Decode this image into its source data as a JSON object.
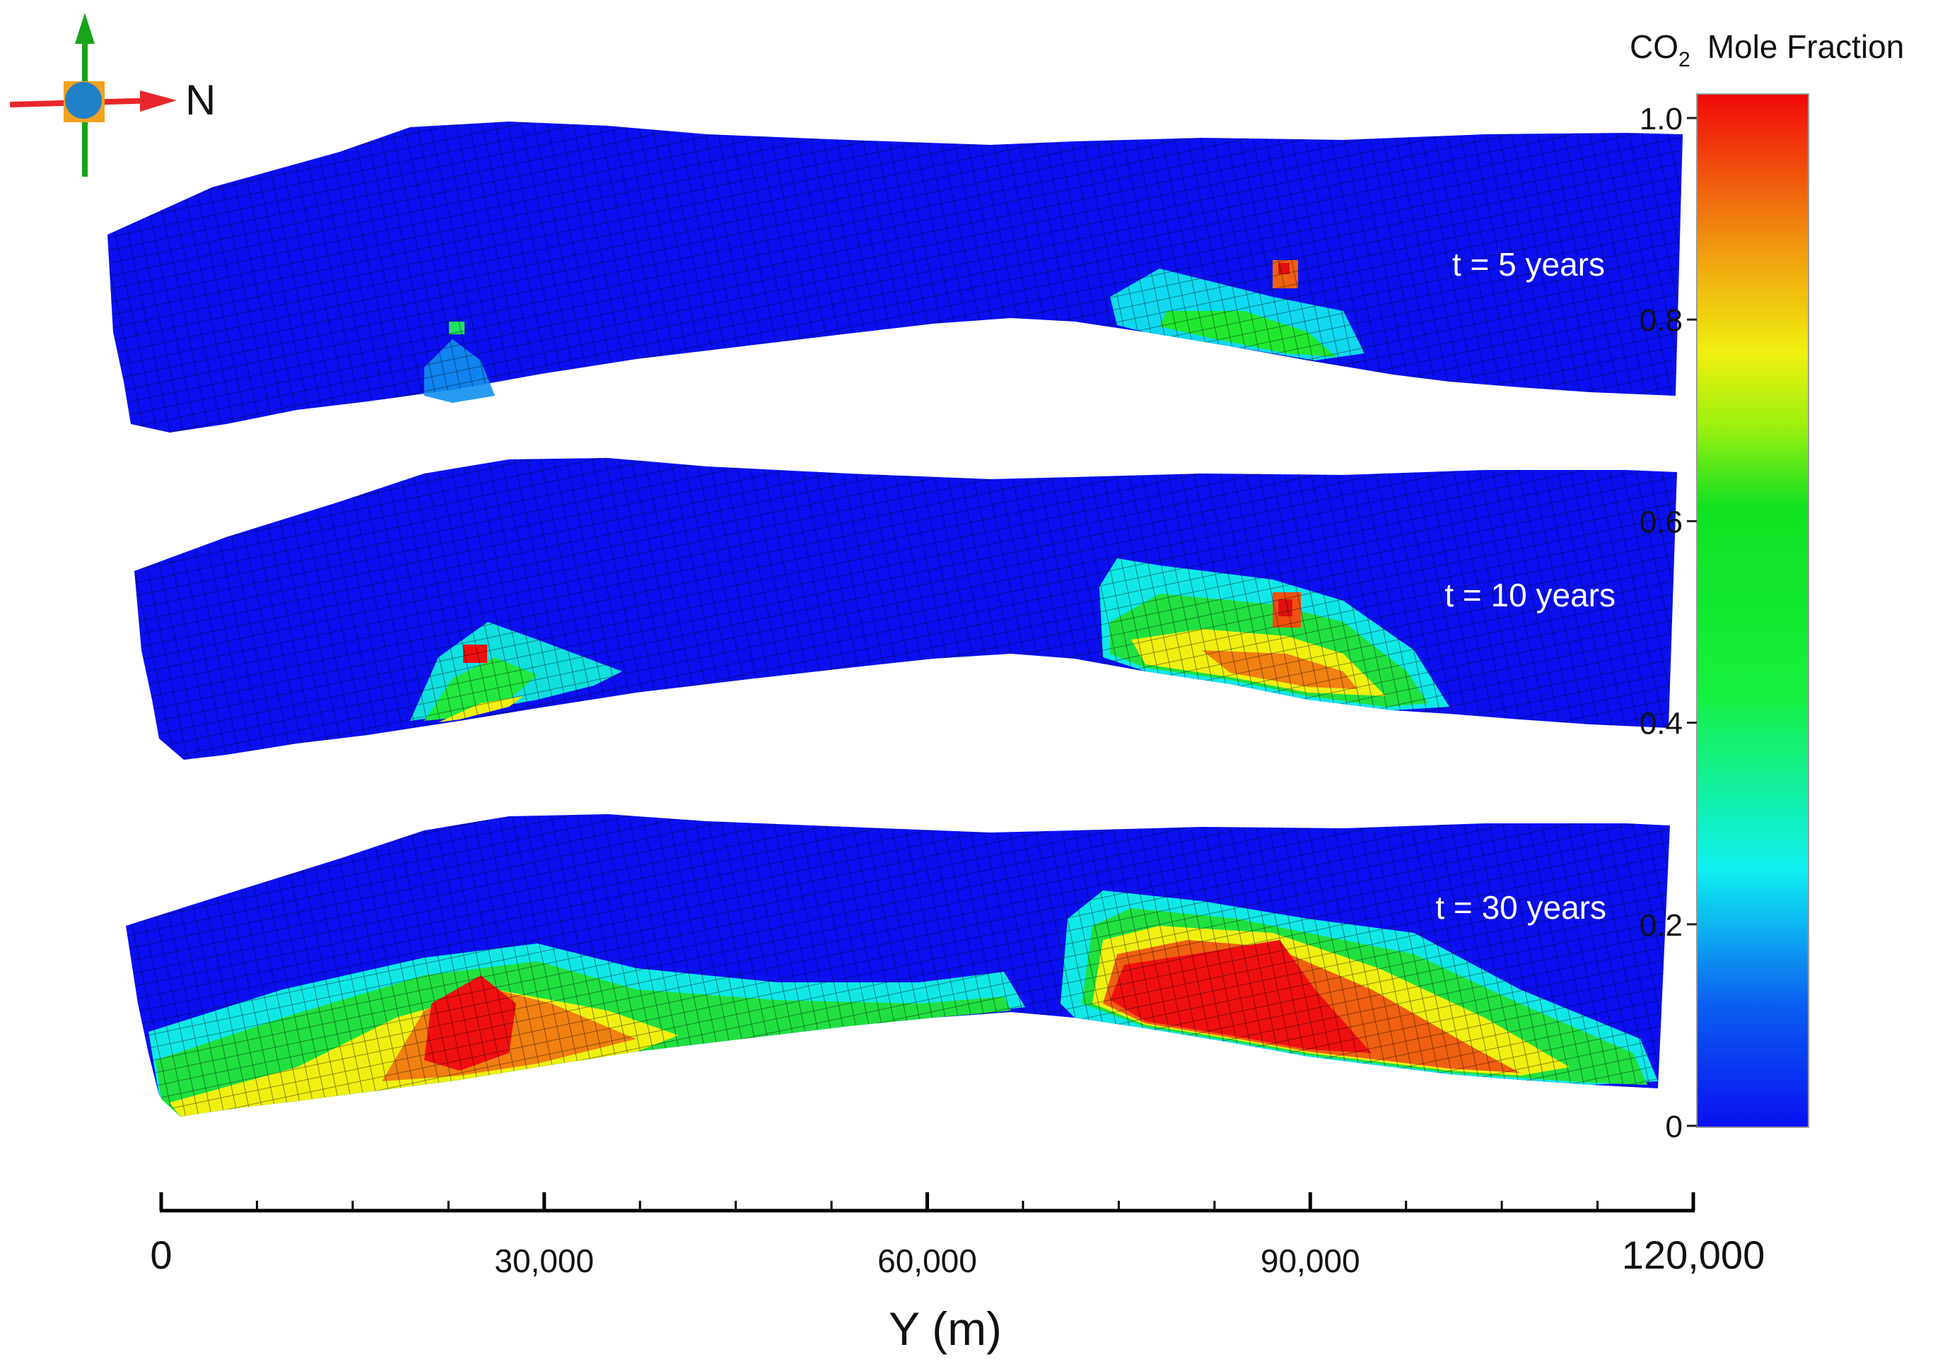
{
  "colorbar": {
    "title_main": "CO",
    "title_sub": "2",
    "title_rest": "Mole Fraction",
    "ticks": [
      {
        "value": 1.0,
        "label": "1.0"
      },
      {
        "value": 0.8,
        "label": "0.8"
      },
      {
        "value": 0.6,
        "label": "0.6"
      },
      {
        "value": 0.4,
        "label": "0.4"
      },
      {
        "value": 0.2,
        "label": "0.2"
      },
      {
        "value": 0.0,
        "label": "0"
      }
    ],
    "colors": [
      "#0a1cf0",
      "#0a8cf0",
      "#10f0f0",
      "#18f040",
      "#10e018",
      "#90f010",
      "#f0f010",
      "#f0a010",
      "#f05010",
      "#f00a0a"
    ]
  },
  "compass": {
    "direction_label": "N",
    "colors": {
      "up_arrow": "#19a319",
      "right_arrow": "#e8262b",
      "center": "#1f80c8",
      "center_square": "#f2a11f"
    }
  },
  "panels": [
    {
      "label": "t = 5 years"
    },
    {
      "label": "t = 10 years"
    },
    {
      "label": "t = 30 years"
    }
  ],
  "x_axis": {
    "title": "Y (m)",
    "ticks": [
      {
        "value": 0,
        "label": "0"
      },
      {
        "value": 30000,
        "label": "30,000"
      },
      {
        "value": 60000,
        "label": "60,000"
      },
      {
        "value": 90000,
        "label": "90,000"
      },
      {
        "value": 120000,
        "label": "120,000"
      }
    ],
    "range": [
      0,
      120000
    ]
  }
}
